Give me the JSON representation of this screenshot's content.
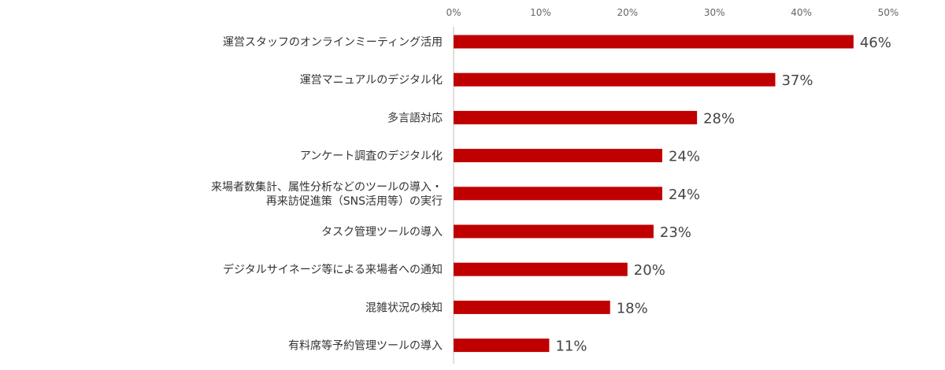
{
  "chart_data": {
    "type": "bar",
    "orientation": "horizontal",
    "categories": [
      [
        "運営スタッフのオンラインミーティング活用"
      ],
      [
        "運営マニュアルのデジタル化"
      ],
      [
        "多言語対応"
      ],
      [
        "アンケート調査のデジタル化"
      ],
      [
        "来場者数集計、属性分析などのツールの導入・",
        "再来訪促進策（SNS活用等）の実行"
      ],
      [
        "タスク管理ツールの導入"
      ],
      [
        "デジタルサイネージ等による来場者への通知"
      ],
      [
        "混雑状況の検知"
      ],
      [
        "有料席等予約管理ツールの導入"
      ]
    ],
    "values": [
      46,
      37,
      28,
      24,
      24,
      23,
      20,
      18,
      11
    ],
    "data_labels": [
      "46%",
      "37%",
      "28%",
      "24%",
      "24%",
      "23%",
      "20%",
      "18%",
      "11%"
    ],
    "xlim": [
      0,
      50
    ],
    "ticks": [
      0,
      10,
      20,
      30,
      40,
      50
    ],
    "tick_labels": [
      "0%",
      "10%",
      "20%",
      "30%",
      "40%",
      "50%"
    ],
    "axis_position": "top",
    "grid": false,
    "bar_color": "#c00000",
    "axis_color": "#bfbfbf"
  }
}
